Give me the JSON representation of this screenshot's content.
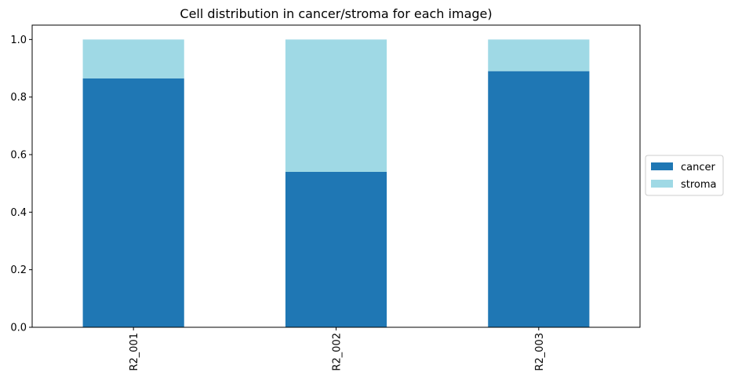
{
  "chart_data": {
    "type": "bar",
    "stacked": true,
    "title": "Cell distribution in cancer/stroma for each image)",
    "xlabel": "",
    "ylabel": "",
    "categories": [
      "R2_001",
      "R2_002",
      "R2_003"
    ],
    "series": [
      {
        "name": "cancer",
        "color": "#1f77b4",
        "values": [
          0.865,
          0.54,
          0.89
        ]
      },
      {
        "name": "stroma",
        "color": "#9fd9e5",
        "values": [
          0.135,
          0.46,
          0.11
        ]
      }
    ],
    "ylim": [
      0,
      1.05
    ],
    "yticks": [
      0.0,
      0.2,
      0.4,
      0.6,
      0.8,
      1.0
    ],
    "ytick_labels": [
      "0.0",
      "0.2",
      "0.4",
      "0.6",
      "0.8",
      "1.0"
    ],
    "grid": false,
    "legend_position": "right"
  }
}
